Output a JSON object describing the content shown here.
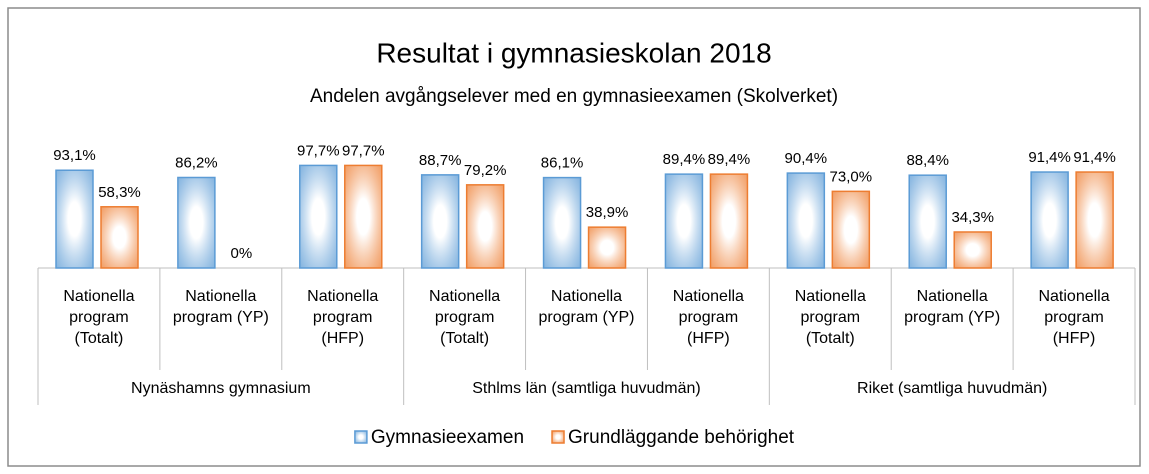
{
  "chart_data": {
    "type": "bar",
    "title": "Resultat i gymnasieskolan 2018",
    "subtitle": "Andelen avgångselever med en gymnasieexamen (Skolverket)",
    "categories": [
      "Nationella program (Totalt)",
      "Nationella program (YP)",
      "Nationella program (HFP)",
      "Nationella program (Totalt)",
      "Nationella program (YP)",
      "Nationella program (HFP)",
      "Nationella program (Totalt)",
      "Nationella program (YP)",
      "Nationella program (HFP)"
    ],
    "groups": [
      "Nynäshamns gymnasium",
      "Sthlms län (samtliga huvudmän)",
      "Riket (samtliga huvudmän)"
    ],
    "series": [
      {
        "name": "Gymnasieexamen",
        "color": "#5b9bd5",
        "values": [
          93.1,
          86.2,
          97.7,
          88.7,
          86.1,
          89.4,
          90.4,
          88.4,
          91.4
        ],
        "value_labels": [
          "93,1%",
          "86,2%",
          "97,7%",
          "88,7%",
          "86,1%",
          "89,4%",
          "90,4%",
          "88,4%",
          "91,4%"
        ]
      },
      {
        "name": "Grundläggande behörighet",
        "color": "#ed7d31",
        "values": [
          58.3,
          0,
          97.7,
          79.2,
          38.9,
          89.4,
          73.0,
          34.3,
          91.4
        ],
        "value_labels": [
          "58,3%",
          "0%",
          "97,7%",
          "79,2%",
          "38,9%",
          "89,4%",
          "73,0%",
          "34,3%",
          "91,4%"
        ]
      }
    ],
    "ylim": [
      0,
      100
    ],
    "legend": "bottom"
  }
}
